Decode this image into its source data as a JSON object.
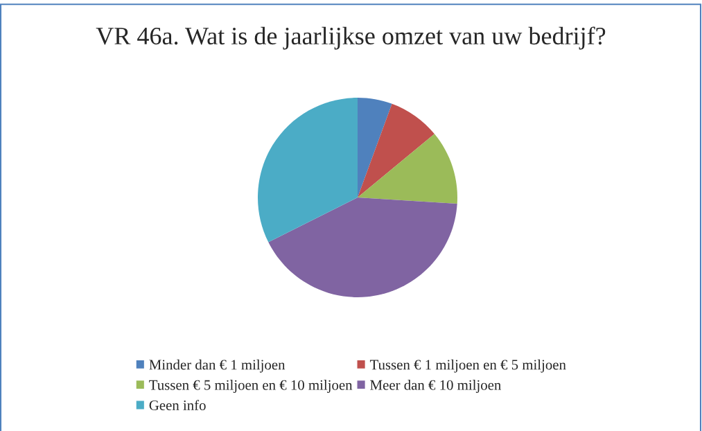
{
  "chart_data": {
    "type": "pie",
    "title": "VR 46a. Wat is de jaarlijkse omzet van uw bedrijf?",
    "categories": [
      "Minder dan € 1 miljoen",
      "Tussen € 1 miljoen en € 5 miljoen",
      "Tussen € 5 miljoen en € 10 miljoen",
      "Meer dan € 10 miljoen",
      "Geen info"
    ],
    "values": [
      5.6,
      8.4,
      12,
      41.6,
      32.4
    ],
    "colors": [
      "#4f81bd",
      "#c0504d",
      "#9bbb59",
      "#8064a2",
      "#4bacc6"
    ],
    "legend": "bottom"
  }
}
